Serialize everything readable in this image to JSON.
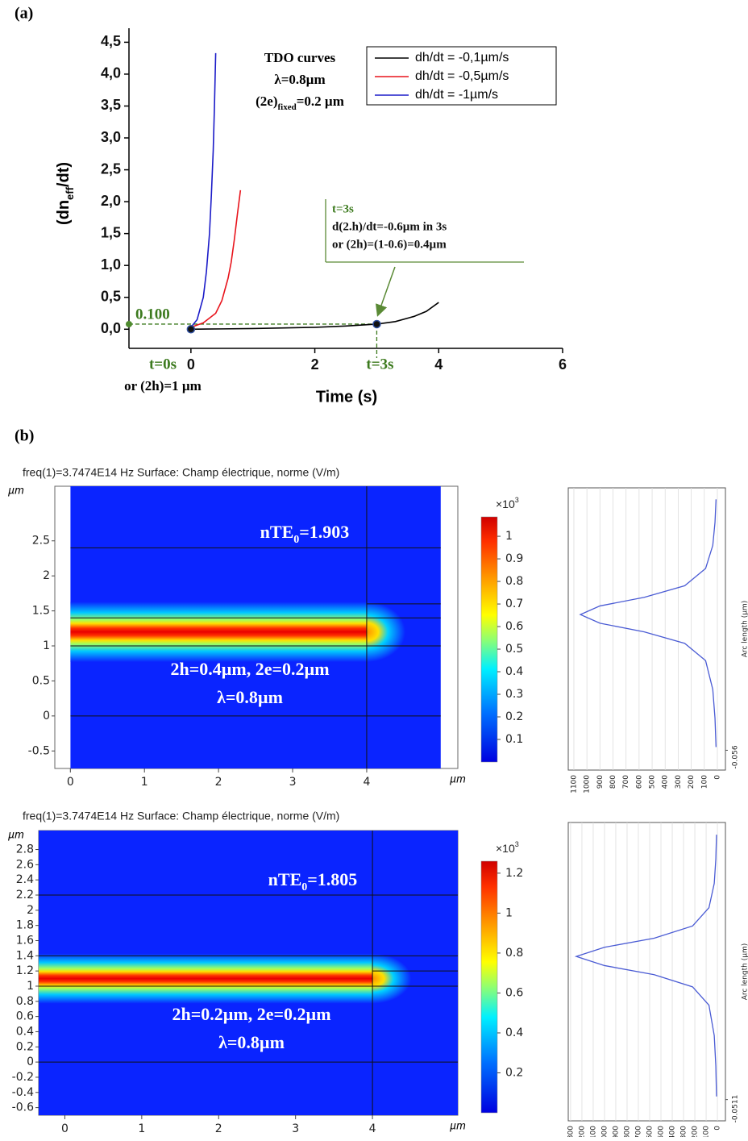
{
  "panel_labels": [
    "(a)",
    "(b)"
  ],
  "chart_data": [
    {
      "type": "line",
      "ylabel": {
        "main": "(dn",
        "sub": "eff",
        "tail": "/dt)"
      },
      "xlabel": "Time (s)",
      "xlim": [
        -1,
        6
      ],
      "xticks": [
        0,
        2,
        4,
        6
      ],
      "ylim": [
        -0.3,
        4.72
      ],
      "yticks": [
        {
          "value": 0,
          "label": "0,0"
        },
        {
          "value": 0.5,
          "label": "0,5"
        },
        {
          "value": 1,
          "label": "1,0"
        },
        {
          "value": 1.5,
          "label": "1,5"
        },
        {
          "value": 2,
          "label": "2,0"
        },
        {
          "value": 2.5,
          "label": "2,5"
        },
        {
          "value": 3,
          "label": "3,0"
        },
        {
          "value": 3.5,
          "label": "3,5"
        },
        {
          "value": 4,
          "label": "4,0"
        },
        {
          "value": 4.5,
          "label": "4,5"
        }
      ],
      "legend": "top-right",
      "series": [
        {
          "name": "dh/dt = -0,1µm/s",
          "color": "#000000",
          "x": [
            0,
            0.5,
            1,
            1.5,
            2,
            2.5,
            3,
            3.3,
            3.6,
            3.8,
            4.0
          ],
          "values": [
            0,
            0.005,
            0.01,
            0.02,
            0.03,
            0.05,
            0.08,
            0.12,
            0.2,
            0.28,
            0.42
          ]
        },
        {
          "name": "dh/dt = -0,5µm/s",
          "color": "#e8141c",
          "x": [
            0,
            0.2,
            0.4,
            0.5,
            0.6,
            0.65,
            0.7,
            0.75,
            0.8
          ],
          "values": [
            0.03,
            0.1,
            0.25,
            0.45,
            0.8,
            1.05,
            1.4,
            1.8,
            2.18
          ]
        },
        {
          "name": "dh/dt = -1µm/s",
          "color": "#1b1bc8",
          "x": [
            0,
            0.1,
            0.2,
            0.25,
            0.3,
            0.33,
            0.36,
            0.38,
            0.4
          ],
          "values": [
            0.03,
            0.15,
            0.5,
            0.9,
            1.5,
            2.1,
            2.8,
            3.5,
            4.33
          ]
        }
      ],
      "markers": {
        "x": [
          0,
          3
        ],
        "values": [
          0,
          0.08
        ]
      },
      "annotations": {
        "title_lines": [
          "TDO  curves",
          "λ=0.8µm"
        ],
        "fixed": {
          "main": "(2e)",
          "sub": "fixed",
          "tail": "=0.2 µm"
        },
        "box_lines": [
          "t=3s",
          "d(2.h)/dt=-0.6µm in 3s",
          "or (2h)=(1-0.6)=0.4µm"
        ],
        "level_label": "0.100",
        "start_lines": [
          "t=0s",
          "or (2h)=1 µm"
        ],
        "end_label": "t=3s"
      }
    },
    {
      "type": "heatmap",
      "header": "freq(1)=3.7474E14 Hz   Surface: Champ électrique, norme (V/m)",
      "unit_x": "µm",
      "unit_y": "µm",
      "xlim": [
        -0.21,
        5.23
      ],
      "xticks": [
        0,
        1,
        2,
        3,
        4
      ],
      "ylim": [
        -0.75,
        3.28
      ],
      "yticks": [
        -0.5,
        0,
        0.5,
        1,
        1.5,
        2,
        2.5
      ],
      "annotations": {
        "mode": {
          "main": "nTE",
          "sub": "0",
          "tail": "=1.903"
        },
        "lines": [
          "2h=0.4µm, 2e=0.2µm",
          "λ=0.8µm"
        ]
      },
      "colorbar": {
        "multiplier": {
          "main": "×10",
          "sup": "3"
        },
        "lim": [
          0,
          1.086
        ],
        "ticks": [
          0.1,
          0.2,
          0.3,
          0.4,
          0.5,
          0.6,
          0.7,
          0.8,
          0.9,
          1
        ]
      },
      "profile": {
        "type": "line",
        "ylabel": "Arc length (µm)",
        "xlim": [
          1143,
          -62
        ],
        "xticks": [
          1100,
          1000,
          900,
          800,
          700,
          600,
          500,
          400,
          300,
          200,
          100,
          0
        ],
        "ylim": [
          -0.4,
          4.5
        ],
        "yticks": [
          -0.056
        ],
        "arc": [
          0,
          0.5,
          1.0,
          1.5,
          1.8,
          2.0,
          2.15,
          2.3,
          2.45,
          2.6,
          2.8,
          3.1,
          3.5,
          3.9,
          4.3
        ],
        "values": [
          10,
          18,
          35,
          90,
          250,
          560,
          900,
          1050,
          900,
          560,
          250,
          90,
          35,
          18,
          10
        ]
      }
    },
    {
      "type": "heatmap",
      "header": "freq(1)=3.7474E14 Hz   Surface: Champ électrique, norme (V/m)",
      "unit_x": "µm",
      "unit_y": "µm",
      "xlim": [
        -0.34,
        5.11
      ],
      "xticks": [
        0,
        1,
        2,
        3,
        4
      ],
      "ylim": [
        -0.7,
        3.05
      ],
      "yticks": [
        -0.6,
        -0.4,
        -0.2,
        0,
        0.2,
        0.4,
        0.6,
        0.8,
        1,
        1.2,
        1.4,
        1.6,
        1.8,
        2,
        2.2,
        2.4,
        2.6,
        2.8
      ],
      "annotations": {
        "mode": {
          "main": "nTE",
          "sub": "0",
          "tail": "=1.805"
        },
        "lines": [
          "2h=0.2µm, 2e=0.2µm",
          "λ=0.8µm"
        ]
      },
      "colorbar": {
        "multiplier": {
          "main": "×10",
          "sup": "3"
        },
        "lim": [
          0,
          1.26
        ],
        "ticks": [
          0.2,
          0.4,
          0.6,
          0.8,
          1,
          1.2
        ]
      },
      "profile": {
        "type": "line",
        "ylabel": "Arc length (µm)",
        "xlim": [
          1321,
          -71
        ],
        "xticks": [
          1300,
          1200,
          1100,
          1000,
          900,
          800,
          700,
          600,
          500,
          400,
          300,
          200,
          100,
          0
        ],
        "ylim": [
          -0.4,
          4.5
        ],
        "yticks": [
          -0.0511
        ],
        "arc": [
          0,
          0.5,
          1.0,
          1.5,
          1.8,
          2.0,
          2.15,
          2.3,
          2.45,
          2.6,
          2.8,
          3.1,
          3.5,
          3.9,
          4.3
        ],
        "values": [
          8,
          14,
          28,
          75,
          220,
          560,
          1000,
          1250,
          1000,
          560,
          220,
          75,
          28,
          14,
          8
        ]
      }
    }
  ]
}
